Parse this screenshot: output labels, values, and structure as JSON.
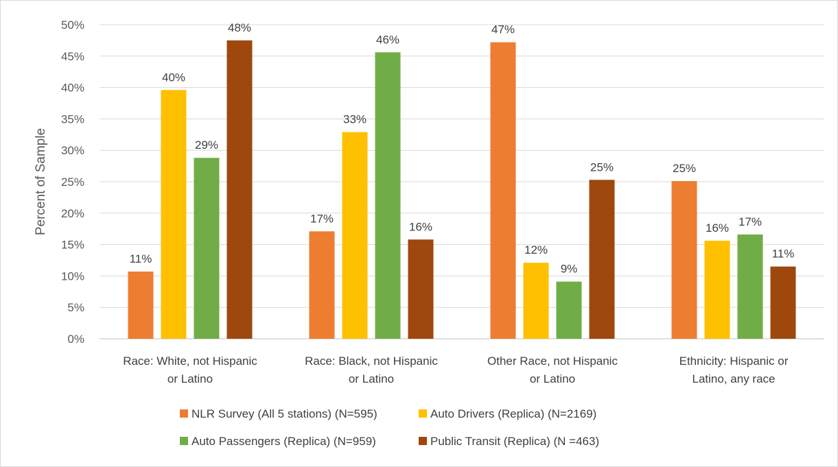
{
  "chart_data": {
    "type": "bar",
    "title": "",
    "xlabel": "",
    "ylabel": "Percent of Sample",
    "ylim": [
      0,
      0.5
    ],
    "yticks": [
      "0%",
      "5%",
      "10%",
      "15%",
      "20%",
      "25%",
      "30%",
      "35%",
      "40%",
      "45%",
      "50%"
    ],
    "grid": true,
    "legend_position": "bottom",
    "categories": [
      [
        "Race: White, not Hispanic",
        "or Latino"
      ],
      [
        "Race: Black, not Hispanic",
        "or Latino"
      ],
      [
        "Other Race, not Hispanic",
        "or Latino"
      ],
      [
        "Ethnicity: Hispanic or",
        "Latino, any race"
      ]
    ],
    "series": [
      {
        "name": "NLR Survey (All 5 stations) (N=595)",
        "color": "#ED7D31",
        "values": [
          0.107,
          0.171,
          0.472,
          0.251
        ],
        "labels": [
          "11%",
          "17%",
          "47%",
          "25%"
        ]
      },
      {
        "name": "Auto Drivers (Replica) (N=2169)",
        "color": "#FFC000",
        "values": [
          0.396,
          0.329,
          0.121,
          0.156
        ],
        "labels": [
          "40%",
          "33%",
          "12%",
          "16%"
        ]
      },
      {
        "name": "Auto Passengers (Replica) (N=959)",
        "color": "#70AD47",
        "values": [
          0.288,
          0.456,
          0.091,
          0.166
        ],
        "labels": [
          "29%",
          "46%",
          "9%",
          "17%"
        ]
      },
      {
        "name": "Public Transit (Replica) (N =463)",
        "color": "#9E480E",
        "values": [
          0.475,
          0.158,
          0.253,
          0.115
        ],
        "labels": [
          "48%",
          "16%",
          "25%",
          "11%"
        ]
      }
    ]
  }
}
